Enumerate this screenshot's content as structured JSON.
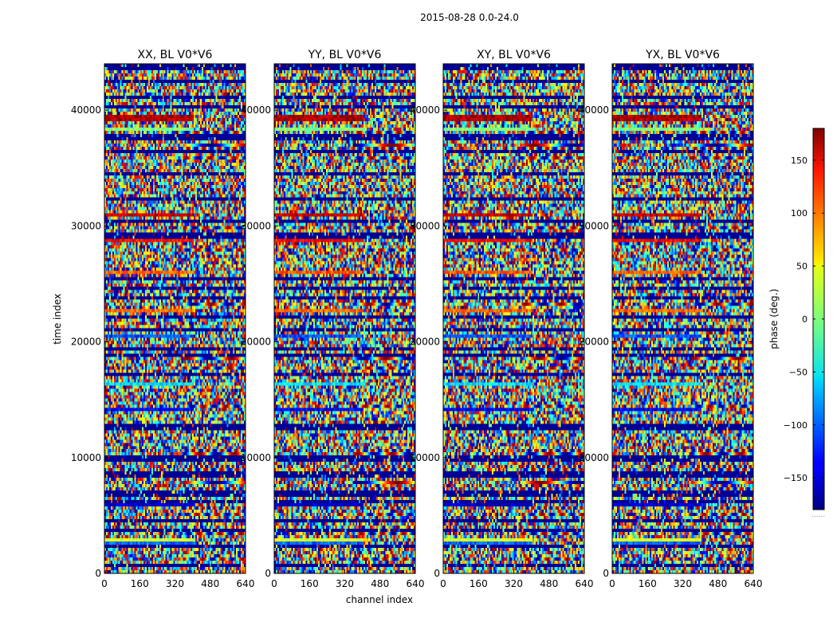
{
  "figure": {
    "suptitle": "2015-08-28 0.0-24.0"
  },
  "chart_data": {
    "type": "heatmap",
    "suptitle": "2015-08-28 0.0-24.0",
    "xlabel": "channel index",
    "ylabel": "time index",
    "xlim": [
      0,
      640
    ],
    "ylim": [
      0,
      44000
    ],
    "xticks": [
      0,
      160,
      320,
      480,
      640
    ],
    "yticks": [
      0,
      10000,
      20000,
      30000,
      40000
    ],
    "panels": [
      {
        "title": "XX, BL V0*V6"
      },
      {
        "title": "YY, BL V0*V6"
      },
      {
        "title": "XY, BL V0*V6"
      },
      {
        "title": "YX, BL V0*V6"
      }
    ],
    "colorbar": {
      "label": "phase (deg.)",
      "range": [
        -180,
        180
      ],
      "ticks": [
        -150,
        -100,
        -50,
        0,
        50,
        100,
        150
      ],
      "colormap": "jet",
      "overflow_mark": "......"
    }
  }
}
